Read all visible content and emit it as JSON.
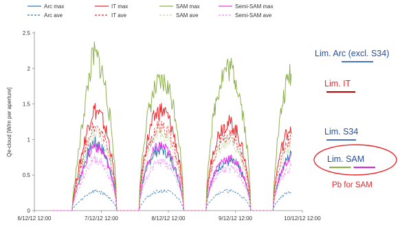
{
  "chart_data": {
    "type": "line",
    "ylabel": "Qe-cloud [W/m per aperture]",
    "ylim": [
      0,
      2.5
    ],
    "yticks": [
      "0",
      "0.5",
      "1",
      "1.5",
      "2",
      "2.5"
    ],
    "xlim": [
      "6/12/12 12:00",
      "10/12/12 12:00"
    ],
    "xticks": [
      "6/12/12 12:00",
      "7/12/12 12:00",
      "8/12/12 12:00",
      "9/12/12 12:00",
      "10/12/12 12:00"
    ],
    "grid": false,
    "legend_position": "top",
    "series": [
      {
        "name": "Arc max",
        "color": "#2e75b6",
        "style": "solid",
        "x": [
          "6/12/12 23:00",
          "7/12/12 09:00",
          "8/12/12 09:00",
          "8/12/12 19:00",
          "9/12/12 09:00",
          "10/12/12 09:00"
        ],
        "y": [
          0.4,
          1.05,
          0.95,
          0.85,
          0.75,
          0.9
        ]
      },
      {
        "name": "IT max",
        "color": "#e8262a",
        "style": "solid",
        "x": [
          "6/12/12 23:00",
          "7/12/12 09:00",
          "8/12/12 09:00",
          "8/12/12 19:00",
          "9/12/12 09:00",
          "10/12/12 09:00"
        ],
        "y": [
          0.55,
          1.55,
          1.55,
          1.5,
          1.35,
          1.35
        ]
      },
      {
        "name": "SAM max",
        "color": "#8db04e",
        "style": "solid",
        "x": [
          "6/12/12 23:00",
          "7/12/12 09:00",
          "8/12/12 09:00",
          "8/12/12 19:00",
          "9/12/12 09:00",
          "10/12/12 09:00"
        ],
        "y": [
          0.6,
          2.4,
          1.95,
          2.2,
          2.2,
          2.2
        ]
      },
      {
        "name": "Semi-SAM max",
        "color": "#e83be8",
        "style": "solid",
        "x": [
          "6/12/12 23:00",
          "7/12/12 09:00",
          "8/12/12 09:00",
          "8/12/12 19:00",
          "9/12/12 09:00",
          "10/12/12 09:00"
        ],
        "y": [
          0.4,
          1.0,
          1.0,
          0.9,
          0.8,
          0.85
        ]
      },
      {
        "name": "Arc ave",
        "color": "#2e75b6",
        "style": "dashed",
        "x": [
          "6/12/12 23:00",
          "7/12/12 09:00",
          "8/12/12 09:00",
          "8/12/12 19:00",
          "9/12/12 09:00",
          "10/12/12 09:00"
        ],
        "y": [
          0.12,
          0.3,
          0.3,
          0.35,
          0.3,
          0.3
        ]
      },
      {
        "name": "IT ave",
        "color": "#e8262a",
        "style": "dashed",
        "x": [
          "6/12/12 23:00",
          "7/12/12 09:00",
          "8/12/12 09:00",
          "8/12/12 19:00",
          "9/12/12 09:00",
          "10/12/12 09:00"
        ],
        "y": [
          0.45,
          1.3,
          1.3,
          1.25,
          1.15,
          1.15
        ]
      },
      {
        "name": "SAM ave",
        "color": "#c4d79b",
        "style": "dashed",
        "x": [
          "6/12/12 23:00",
          "7/12/12 09:00",
          "8/12/12 09:00",
          "8/12/12 19:00",
          "9/12/12 09:00",
          "10/12/12 09:00"
        ],
        "y": [
          0.35,
          1.2,
          1.2,
          1.15,
          1.05,
          1.05
        ]
      },
      {
        "name": "Semi-SAM ave",
        "color": "#f08cf0",
        "style": "dashed",
        "x": [
          "6/12/12 23:00",
          "7/12/12 09:00",
          "8/12/12 09:00",
          "8/12/12 19:00",
          "9/12/12 09:00",
          "10/12/12 09:00"
        ],
        "y": [
          0.3,
          0.8,
          0.75,
          0.75,
          0.65,
          0.7
        ]
      }
    ],
    "annotations": [
      {
        "text": "Lim. Arc (excl. S34)",
        "color": "#1f4e9c",
        "underline_color": "#4472c4",
        "value": 2.1
      },
      {
        "text": "Lim. IT",
        "color": "#e8262a",
        "underline_color": "#c00000",
        "value": 1.6
      },
      {
        "text": "Lim. S34",
        "color": "#1f4e9c",
        "underline_color": "#4472c4",
        "value": 0.97
      },
      {
        "text": "Lim. SAM",
        "color": "#1f4e9c",
        "underline_colors": [
          "#8db04e",
          "#cc33cc"
        ],
        "value": 0.32
      },
      {
        "text": "Pb for SAM",
        "color": "#e8262a"
      }
    ]
  }
}
